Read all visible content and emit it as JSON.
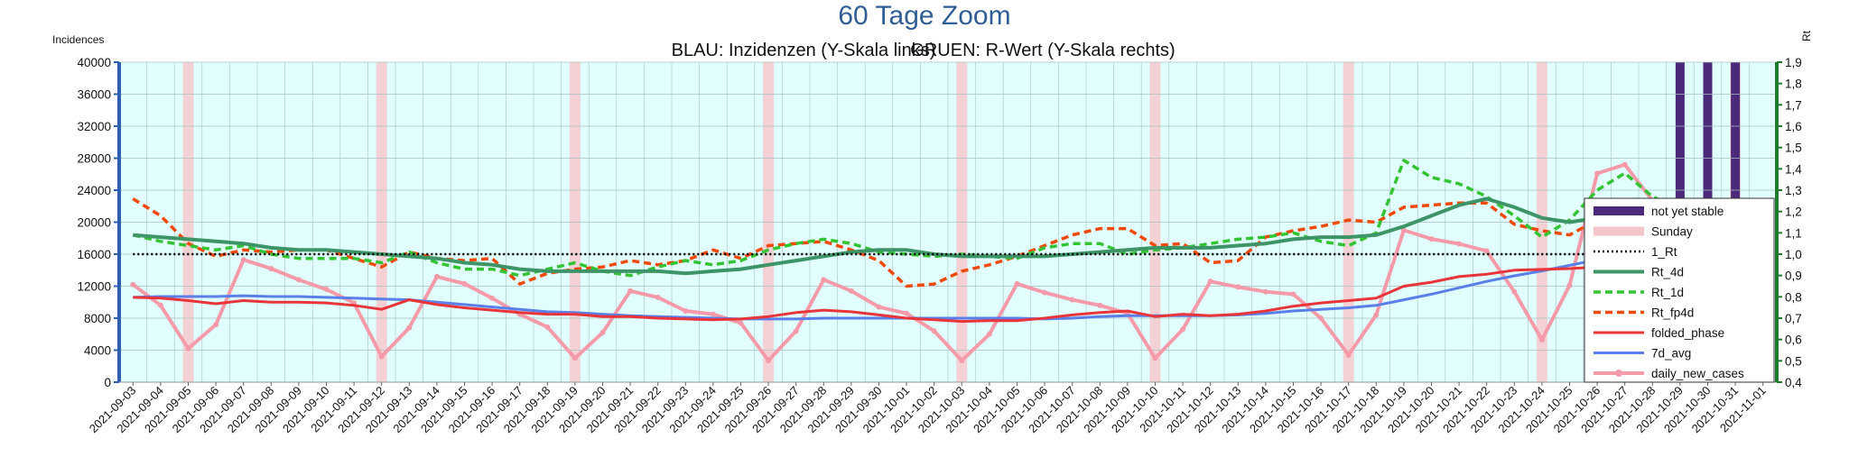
{
  "chart_data": {
    "type": "line",
    "title": "60 Tage Zoom",
    "subtitle_left": "BLAU: Inzidenzen (Y-Skala links)",
    "subtitle_right": "GRUEN: R-Wert (Y-Skala rechts)",
    "ylabel_left": "Incidences",
    "ylabel_right": "Rt",
    "ylim_left": [
      0,
      40000
    ],
    "ylim_right": [
      0.4,
      1.9
    ],
    "yticks_left": [
      "0",
      "4000",
      "8000",
      "12000",
      "16000",
      "20000",
      "24000",
      "28000",
      "32000",
      "36000",
      "40000"
    ],
    "yticks_right": [
      "0,4",
      "0,5",
      "0,6",
      "0,7",
      "0,8",
      "0,9",
      "1,0",
      "1,1",
      "1,2",
      "1,3",
      "1,4",
      "1,5",
      "1,6",
      "1,7",
      "1,8",
      "1,9"
    ],
    "x": [
      "2021-09-03",
      "2021-09-04",
      "2021-09-05",
      "2021-09-06",
      "2021-09-07",
      "2021-09-08",
      "2021-09-09",
      "2021-09-10",
      "2021-09-11",
      "2021-09-12",
      "2021-09-13",
      "2021-09-14",
      "2021-09-15",
      "2021-09-16",
      "2021-09-17",
      "2021-09-18",
      "2021-09-19",
      "2021-09-20",
      "2021-09-21",
      "2021-09-22",
      "2021-09-23",
      "2021-09-24",
      "2021-09-25",
      "2021-09-26",
      "2021-09-27",
      "2021-09-28",
      "2021-09-29",
      "2021-09-30",
      "2021-10-01",
      "2021-10-02",
      "2021-10-03",
      "2021-10-04",
      "2021-10-05",
      "2021-10-06",
      "2021-10-07",
      "2021-10-08",
      "2021-10-09",
      "2021-10-10",
      "2021-10-11",
      "2021-10-12",
      "2021-10-13",
      "2021-10-14",
      "2021-10-15",
      "2021-10-16",
      "2021-10-17",
      "2021-10-18",
      "2021-10-19",
      "2021-10-20",
      "2021-10-21",
      "2021-10-22",
      "2021-10-23",
      "2021-10-24",
      "2021-10-25",
      "2021-10-26",
      "2021-10-27",
      "2021-10-28",
      "2021-10-29",
      "2021-10-30",
      "2021-10-31",
      "2021-11-01"
    ],
    "sundays": [
      "2021-09-05",
      "2021-09-12",
      "2021-09-19",
      "2021-09-26",
      "2021-10-03",
      "2021-10-10",
      "2021-10-17",
      "2021-10-24",
      "2021-10-31"
    ],
    "not_yet_stable": [
      "2021-10-29",
      "2021-10-30",
      "2021-10-31"
    ],
    "series": [
      {
        "name": "1_Rt",
        "axis": "right",
        "color": "#000000",
        "style": "dotted",
        "values": [
          1.0,
          1.0,
          1.0,
          1.0,
          1.0,
          1.0,
          1.0,
          1.0,
          1.0,
          1.0,
          1.0,
          1.0,
          1.0,
          1.0,
          1.0,
          1.0,
          1.0,
          1.0,
          1.0,
          1.0,
          1.0,
          1.0,
          1.0,
          1.0,
          1.0,
          1.0,
          1.0,
          1.0,
          1.0,
          1.0,
          1.0,
          1.0,
          1.0,
          1.0,
          1.0,
          1.0,
          1.0,
          1.0,
          1.0,
          1.0,
          1.0,
          1.0,
          1.0,
          1.0,
          1.0,
          1.0,
          1.0,
          1.0,
          1.0,
          1.0,
          1.0,
          1.0,
          1.0,
          1.0,
          1.0,
          1.0,
          1.0,
          1.0,
          1.0,
          1.0
        ]
      },
      {
        "name": "Rt_4d",
        "axis": "right",
        "color": "#3d9466",
        "style": "solid-thick",
        "values": [
          1.09,
          1.08,
          1.07,
          1.06,
          1.05,
          1.03,
          1.02,
          1.02,
          1.01,
          1.0,
          0.99,
          0.98,
          0.96,
          0.95,
          0.93,
          0.92,
          0.92,
          0.92,
          0.92,
          0.92,
          0.91,
          0.92,
          0.93,
          0.95,
          0.97,
          0.99,
          1.01,
          1.02,
          1.02,
          1.0,
          0.99,
          0.99,
          0.99,
          0.99,
          1.0,
          1.01,
          1.02,
          1.03,
          1.03,
          1.03,
          1.04,
          1.05,
          1.07,
          1.08,
          1.08,
          1.09,
          1.13,
          1.18,
          1.23,
          1.26,
          1.22,
          1.17,
          1.15,
          1.17,
          1.2,
          1.23,
          1.23,
          1.18,
          1.12,
          1.05
        ]
      },
      {
        "name": "Rt_1d",
        "axis": "right",
        "color": "#33c433",
        "style": "dashed",
        "values": [
          1.09,
          1.06,
          1.04,
          1.02,
          1.04,
          1.0,
          0.98,
          0.98,
          0.98,
          0.96,
          1.01,
          0.96,
          0.93,
          0.93,
          0.9,
          0.93,
          0.96,
          0.92,
          0.9,
          0.94,
          0.97,
          0.95,
          0.97,
          1.02,
          1.05,
          1.07,
          1.05,
          1.01,
          1.0,
          0.99,
          1.0,
          0.99,
          0.98,
          1.03,
          1.05,
          1.05,
          1.0,
          1.02,
          1.03,
          1.05,
          1.07,
          1.08,
          1.1,
          1.06,
          1.04,
          1.1,
          1.44,
          1.36,
          1.33,
          1.27,
          1.18,
          1.08,
          1.16,
          1.3,
          1.38,
          1.27,
          1.21,
          1.1,
          1.04,
          0.88
        ]
      },
      {
        "name": "Rt_fp4d",
        "axis": "right",
        "color": "#f04a0a",
        "style": "dashed",
        "values": [
          1.26,
          1.18,
          1.05,
          0.99,
          1.02,
          1.01,
          1.02,
          1.02,
          0.98,
          0.94,
          1.01,
          0.98,
          0.97,
          0.98,
          0.86,
          0.91,
          0.93,
          0.94,
          0.97,
          0.95,
          0.97,
          1.02,
          0.98,
          1.04,
          1.05,
          1.06,
          1.02,
          0.97,
          0.85,
          0.86,
          0.92,
          0.95,
          0.99,
          1.04,
          1.09,
          1.12,
          1.12,
          1.04,
          1.05,
          0.96,
          0.97,
          1.08,
          1.11,
          1.13,
          1.16,
          1.15,
          1.22,
          1.23,
          1.24,
          1.24,
          1.14,
          1.11,
          1.09,
          1.16,
          1.21,
          1.23,
          1.22,
          1.18,
          1.05,
          0.52
        ]
      },
      {
        "name": "folded_phase",
        "axis": "left",
        "color": "#e8353a",
        "style": "solid",
        "values": [
          10600,
          10500,
          10200,
          9800,
          10200,
          10000,
          10000,
          9900,
          9600,
          9100,
          10300,
          9700,
          9300,
          9000,
          8700,
          8500,
          8500,
          8200,
          8200,
          8000,
          7900,
          7800,
          7900,
          8200,
          8700,
          9000,
          8800,
          8400,
          8000,
          7800,
          7600,
          7700,
          7700,
          8000,
          8400,
          8700,
          8900,
          8200,
          8500,
          8300,
          8500,
          8900,
          9500,
          9900,
          10200,
          10500,
          12000,
          12500,
          13200,
          13500,
          14000,
          14100,
          14200,
          14400,
          16800,
          17000,
          17000,
          16700,
          17200,
          8500
        ]
      },
      {
        "name": "7d_avg",
        "axis": "left",
        "color": "#5a7fe8",
        "style": "solid",
        "values": [
          10600,
          10700,
          10700,
          10700,
          10800,
          10700,
          10700,
          10600,
          10500,
          10400,
          10300,
          10000,
          9700,
          9400,
          9100,
          8800,
          8700,
          8500,
          8300,
          8200,
          8100,
          8000,
          7900,
          7900,
          7900,
          8000,
          8000,
          8000,
          8000,
          8000,
          8000,
          8000,
          8000,
          7900,
          8000,
          8200,
          8300,
          8300,
          8300,
          8300,
          8400,
          8600,
          8900,
          9100,
          9300,
          9600,
          10300,
          11000,
          11800,
          12600,
          13300,
          13900,
          14600,
          15300,
          16500,
          17500,
          18500,
          18900,
          18800,
          18400
        ]
      },
      {
        "name": "daily_new_cases",
        "axis": "left",
        "color": "#f49aa8",
        "style": "marker",
        "values": [
          12200,
          9600,
          4200,
          7200,
          15300,
          14200,
          12800,
          11600,
          9900,
          3200,
          6800,
          13200,
          12300,
          10500,
          8500,
          6900,
          3000,
          6200,
          11400,
          10600,
          8900,
          8500,
          7400,
          2700,
          6400,
          12800,
          11400,
          9400,
          8600,
          6400,
          2700,
          6000,
          12300,
          11200,
          10300,
          9600,
          8600,
          3000,
          6600,
          12600,
          11900,
          11300,
          11000,
          8000,
          3400,
          8400,
          19000,
          17900,
          17300,
          16400,
          11300,
          5300,
          12100,
          26100,
          27200,
          22700,
          20100,
          17200,
          6800,
          6700
        ]
      }
    ]
  },
  "legend": [
    {
      "label": "not yet stable",
      "color": "#4b2a7b",
      "kind": "thickbar"
    },
    {
      "label": "Sunday",
      "color": "#f4c6ca",
      "kind": "thickbar"
    },
    {
      "label": "1_Rt",
      "color": "#000000",
      "kind": "dotted"
    },
    {
      "label": "Rt_4d",
      "color": "#3d9466",
      "kind": "solid-thick"
    },
    {
      "label": "Rt_1d",
      "color": "#33c433",
      "kind": "dashed"
    },
    {
      "label": "Rt_fp4d",
      "color": "#f04a0a",
      "kind": "dashed"
    },
    {
      "label": "folded_phase",
      "color": "#e8353a",
      "kind": "solid"
    },
    {
      "label": "7d_avg",
      "color": "#5a7fe8",
      "kind": "solid"
    },
    {
      "label": "daily_new_cases",
      "color": "#f49aa8",
      "kind": "marker"
    }
  ],
  "colors": {
    "plot_bg": "#e0fffe",
    "grid": "#a9c0c0",
    "left_axis": "#2f5fb0",
    "right_axis": "#1f7a2c",
    "title": "#2f5e96"
  }
}
